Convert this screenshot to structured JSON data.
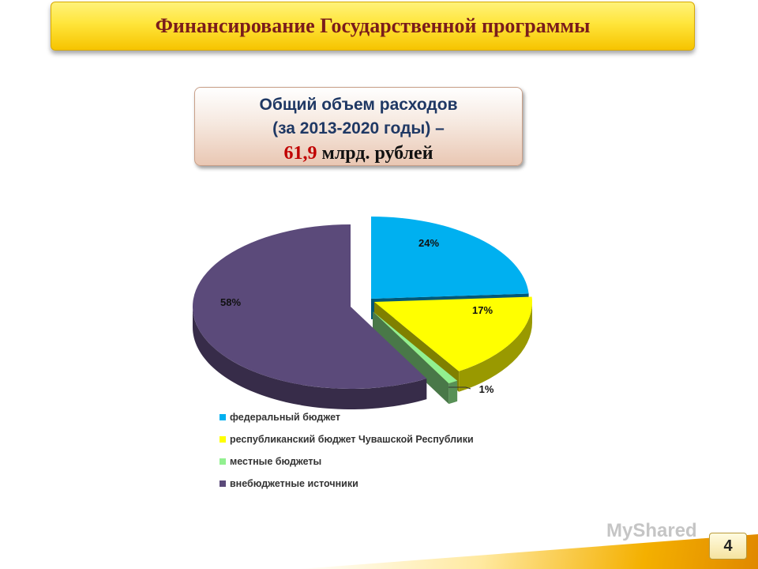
{
  "header": {
    "title": "Финансирование Государственной программы"
  },
  "summary": {
    "line1": "Общий объем расходов",
    "line2": "(за 2013-2020 годы) –",
    "amount": "61,9",
    "unit": " млрд. рублей"
  },
  "chart_data": {
    "type": "pie",
    "title": "",
    "legend_position": "bottom",
    "labels": [
      "федеральный бюджет",
      "республиканский бюджет Чувашской Республики",
      "местные бюджеты",
      "внебюджетные источники"
    ],
    "values": [
      24,
      17,
      1,
      58
    ],
    "data_labels": [
      "24%",
      "17%",
      "1%",
      "58%"
    ],
    "colors": [
      "#00b0f0",
      "#ffff00",
      "#92f090",
      "#5b4a7a"
    ]
  },
  "watermark": "MyShared",
  "footer": {
    "page_number": "4"
  }
}
